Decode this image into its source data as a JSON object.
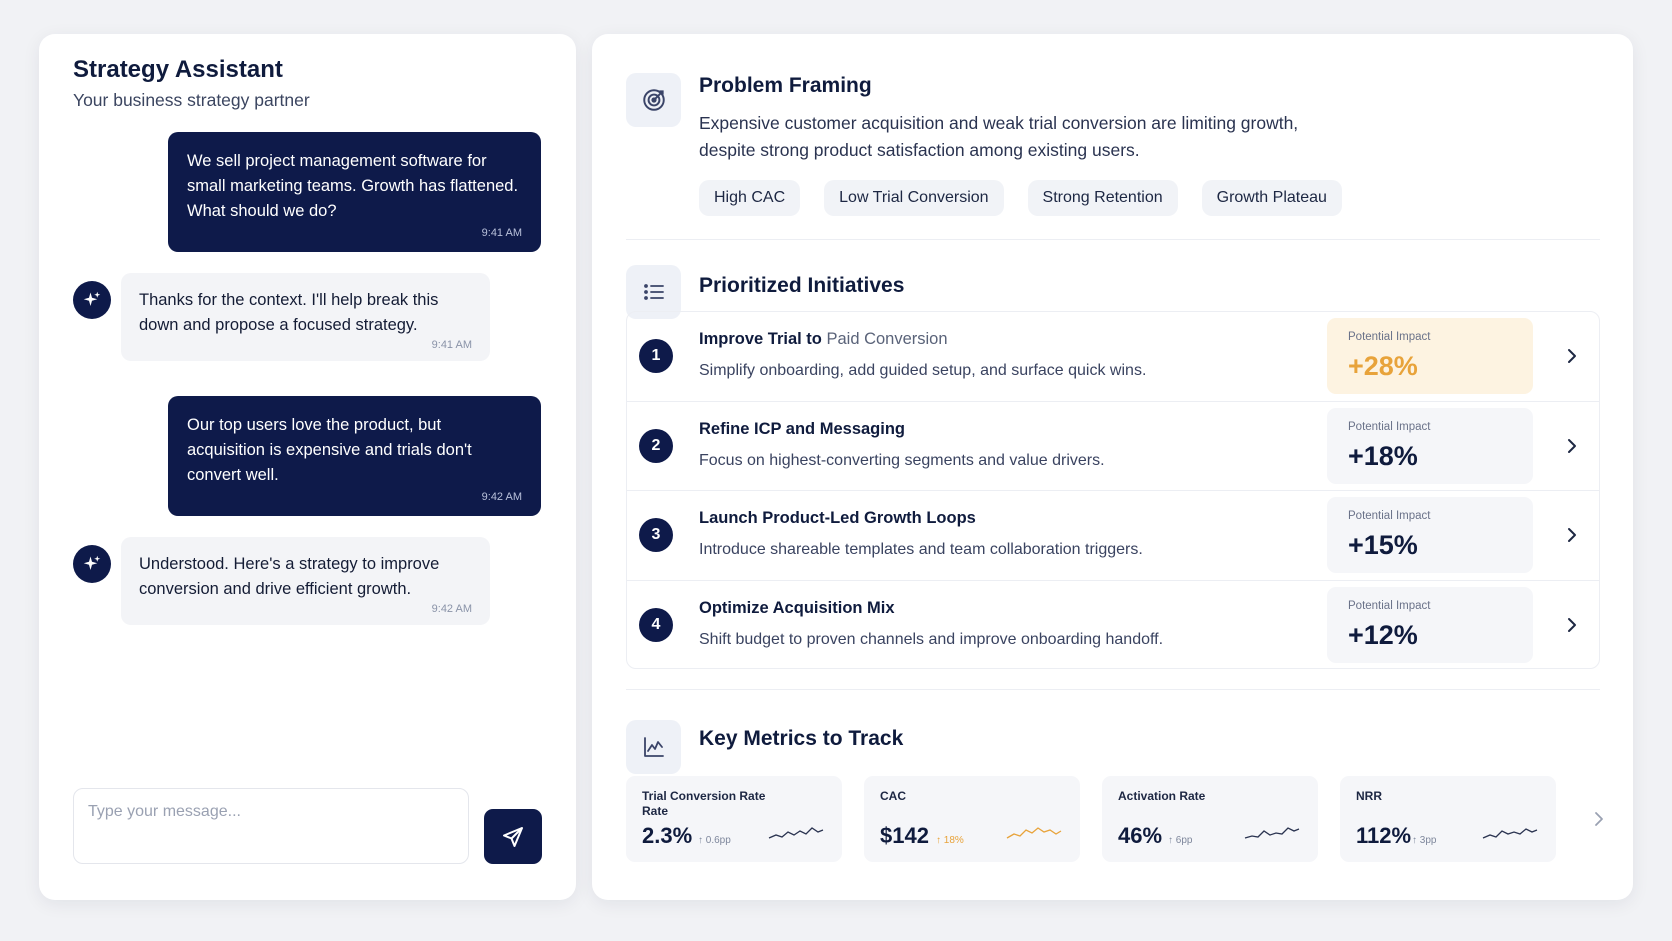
{
  "chat": {
    "title": "Strategy Assistant",
    "subtitle": "Your business strategy partner",
    "messages": [
      {
        "role": "user",
        "text": "We sell project management software for small marketing teams. Growth has flattened. What should we do?",
        "time": "9:41 AM"
      },
      {
        "role": "assistant",
        "text": "Thanks for the context. I'll help break this down and propose a focused strategy.",
        "time": "9:41 AM"
      },
      {
        "role": "user",
        "text": "Our top users love the product, but acquisition is expensive and trials don't convert well.",
        "time": "9:42 AM"
      },
      {
        "role": "assistant",
        "text": "Understood. Here's a strategy to improve conversion and drive efficient growth.",
        "time": "9:42 AM"
      }
    ],
    "input_placeholder": "Type your message...",
    "avatar_icon": "sparkle-icon",
    "send_icon": "send-icon"
  },
  "framing": {
    "icon": "target-icon",
    "title": "Problem Framing",
    "text": "Expensive customer acquisition and weak trial conversion are limiting growth, despite strong product satisfaction among existing users.",
    "tags": [
      "High CAC",
      "Low Trial Conversion",
      "Strong Retention",
      "Growth Plateau"
    ]
  },
  "initiatives": {
    "icon": "list-icon",
    "title": "Prioritized Initiatives",
    "impact_label": "Potential Impact",
    "items": [
      {
        "num": "1",
        "title": "Improve Trial to",
        "title_muted": "Paid Conversion",
        "desc": "Simplify onboarding, add guided setup, and surface quick wins.",
        "impact": "+28%",
        "highlight": true
      },
      {
        "num": "2",
        "title": "Refine ICP and Messaging",
        "title_muted": "",
        "desc": "Focus on highest-converting segments and value drivers.",
        "impact": "+18%",
        "highlight": false
      },
      {
        "num": "3",
        "title": "Launch Product-Led Growth Loops",
        "title_muted": "",
        "desc": "Introduce shareable templates and team collaboration triggers.",
        "impact": "+15%",
        "highlight": false
      },
      {
        "num": "4",
        "title": "Optimize Acquisition Mix",
        "title_muted": "",
        "desc": "Shift budget to proven channels and improve onboarding handoff.",
        "impact": "+12%",
        "highlight": false
      }
    ]
  },
  "metrics": {
    "icon": "chart-icon",
    "title": "Key Metrics to Track",
    "items": [
      {
        "label": "Trial Conversion Rate Rate",
        "value": "2.3%",
        "delta": "↑ 0.6pp",
        "warn": false
      },
      {
        "label": "CAC",
        "value": "$142",
        "delta": "↑ 18%",
        "warn": true
      },
      {
        "label": "Activation Rate",
        "value": "46%",
        "delta": "↑ 6pp",
        "warn": false
      },
      {
        "label": "NRR",
        "value": "112%",
        "delta": "↑ 3pp",
        "warn": false
      }
    ]
  },
  "colors": {
    "navy": "#0e1a4a",
    "accent_orange": "#e8a33a",
    "highlight_bg": "#fdf3e1"
  }
}
